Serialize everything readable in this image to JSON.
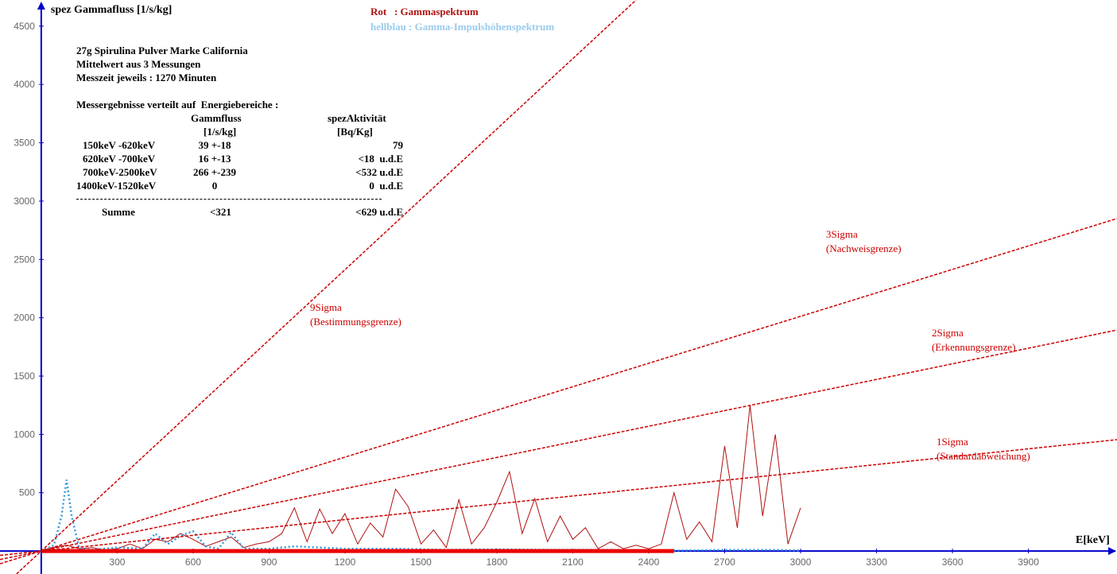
{
  "chart_data": {
    "type": "line",
    "y_label": "spez Gammafluss [1/s/kg]",
    "x_label": "E[keV]",
    "xlim": [
      -163,
      4250
    ],
    "ylim": [
      -197,
      4724
    ],
    "xticks": [
      300,
      600,
      900,
      1200,
      1500,
      1800,
      2100,
      2400,
      2700,
      3000,
      3300,
      3600,
      3900
    ],
    "yticks": [
      500,
      1000,
      1500,
      2000,
      2500,
      3000,
      3500,
      4000,
      4500
    ],
    "axis_color": "#0000cc",
    "series": [
      {
        "name": "Rot   : Gammaspektrum",
        "color": "#b01010",
        "style": "solid",
        "width": 1,
        "x": [
          0,
          50,
          100,
          150,
          200,
          250,
          300,
          350,
          400,
          450,
          500,
          550,
          600,
          650,
          700,
          750,
          800,
          850,
          900,
          950,
          1000,
          1050,
          1100,
          1150,
          1200,
          1250,
          1300,
          1350,
          1400,
          1450,
          1500,
          1550,
          1600,
          1650,
          1700,
          1750,
          1800,
          1850,
          1900,
          1950,
          2000,
          2050,
          2100,
          2150,
          2200,
          2250,
          2300,
          2350,
          2400,
          2450,
          2500,
          2550,
          2600,
          2650,
          2700,
          2750,
          2800,
          2850,
          2900,
          2950,
          3000
        ],
        "values": [
          0,
          30,
          50,
          20,
          30,
          10,
          20,
          60,
          20,
          100,
          80,
          150,
          100,
          40,
          80,
          120,
          30,
          60,
          80,
          150,
          370,
          80,
          360,
          150,
          320,
          60,
          240,
          120,
          530,
          380,
          60,
          180,
          30,
          440,
          60,
          200,
          420,
          680,
          150,
          450,
          80,
          300,
          100,
          200,
          20,
          80,
          20,
          50,
          20,
          60,
          500,
          100,
          250,
          80,
          900,
          200,
          1250,
          300,
          1000,
          60,
          370
        ]
      },
      {
        "name": "hellblau : Gamma-Impulshöhenspektrum",
        "color": "#3399dd",
        "legend_color": "#99ccee",
        "style": "dotted",
        "width": 2.5,
        "x": [
          0,
          50,
          80,
          100,
          120,
          150,
          200,
          300,
          400,
          450,
          500,
          550,
          600,
          650,
          700,
          750,
          800,
          900,
          1000,
          1100,
          1200,
          1400,
          1600,
          1800,
          2000,
          2200,
          2500,
          2700,
          2900,
          3000
        ],
        "values": [
          0,
          50,
          300,
          610,
          300,
          20,
          10,
          30,
          20,
          150,
          60,
          130,
          170,
          40,
          20,
          160,
          20,
          20,
          40,
          30,
          20,
          20,
          10,
          15,
          10,
          10,
          5,
          10,
          10,
          5
        ]
      },
      {
        "color": "#ee0000",
        "style": "solid",
        "width": 5,
        "x": [
          0,
          2500
        ],
        "values": [
          0,
          0
        ]
      },
      {
        "name": "9Sigma",
        "label": "(Bestimmungsgrenze)",
        "color": "#cc0000",
        "style": "dashed",
        "width": 1.5,
        "x": [
          -98,
          2350
        ],
        "values": [
          -197,
          4724
        ]
      },
      {
        "name": "3Sigma",
        "label": "(Nachweisgrenze)",
        "color": "#cc0000",
        "style": "dashed",
        "width": 1.5,
        "x": [
          -163,
          4250
        ],
        "values": [
          -109,
          2850
        ]
      },
      {
        "name": "2Sigma",
        "label": "(Erkennungsgrenze)",
        "color": "#cc0000",
        "style": "dashed",
        "width": 1.5,
        "x": [
          -163,
          4250
        ],
        "values": [
          -73,
          1895
        ]
      },
      {
        "name": "1Sigma",
        "label": "(Standardabweichung)",
        "color": "#cc0000",
        "style": "dashed",
        "width": 1.5,
        "x": [
          -163,
          4250
        ],
        "values": [
          -37,
          955
        ]
      }
    ],
    "info": {
      "lines": [
        "27g Spirulina Pulver Marke California",
        "Mittelwert aus 3 Messungen",
        "Messzeit jeweils : 1270 Minuten"
      ],
      "heading": "Messergebnisse verteilt auf  Energiebereiche :",
      "header": [
        [
          "Gammfluss",
          "spezAktivität"
        ],
        [
          "[1/s/kg]",
          "[Bq/Kg]"
        ]
      ],
      "rows": [
        [
          "150keV -620keV",
          "39 +-18",
          "79"
        ],
        [
          "620keV -700keV",
          "16 +-13",
          "<18  u.d.E"
        ],
        [
          "700keV-2500keV",
          "266 +-239",
          "<532 u.d.E"
        ],
        [
          "1400keV-1520keV",
          "0",
          "0  u.d.E"
        ]
      ],
      "sum": [
        "Summe",
        "<321",
        "<629 u.d.E"
      ]
    }
  }
}
